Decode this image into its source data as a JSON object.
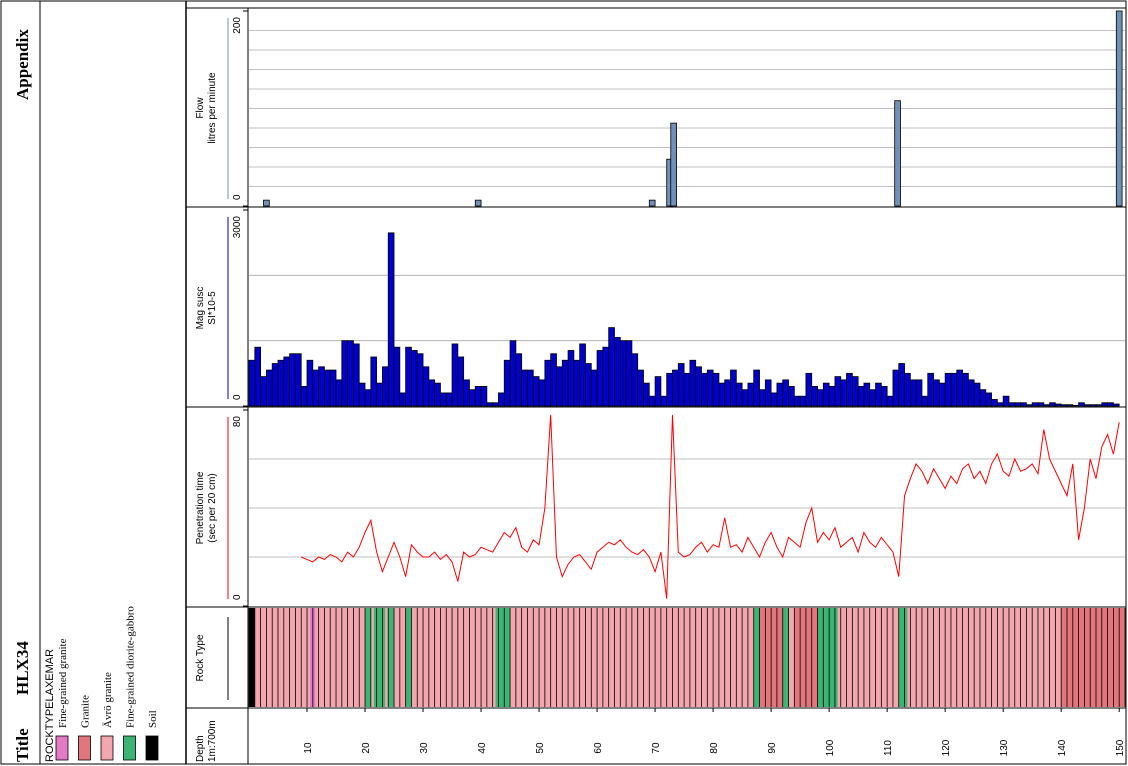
{
  "page": {
    "title_label": "Title",
    "well": "HLX34",
    "appendix": "Appendix"
  },
  "legend": {
    "title": "ROCKTYPELAXEMAR",
    "items": [
      {
        "name": "Fine-grained granite",
        "color": "#e27ac4"
      },
      {
        "name": "Granite",
        "color": "#e2767c"
      },
      {
        "name": "Ävrö granite",
        "color": "#f2a6ae"
      },
      {
        "name": "Fine-grained diorite-gabbro",
        "color": "#3cb474"
      },
      {
        "name": "Soil",
        "color": "#000000"
      }
    ]
  },
  "depth_axis": {
    "label": "Depth",
    "scale": "1m:700m",
    "xlim": [
      0,
      151
    ],
    "xticks": [
      10,
      20,
      30,
      40,
      50,
      60,
      70,
      80,
      90,
      100,
      110,
      120,
      130,
      140,
      150
    ]
  },
  "chart_data": [
    {
      "type": "bar",
      "title": "Flow",
      "axis_label": "litres per minute",
      "color": "#6f90b8",
      "axis_color": "#6f90b8",
      "x": [
        3,
        39.5,
        69.5,
        72.5,
        73.2,
        111.8,
        150
      ],
      "values": [
        6,
        6,
        6,
        48,
        85,
        108,
        200
      ],
      "ylim": [
        0,
        200
      ],
      "yticks": [
        0,
        200
      ],
      "grid_lines": [
        20,
        40,
        60,
        80,
        100,
        120,
        140,
        160,
        180
      ]
    },
    {
      "type": "bar",
      "title": "Mag susc",
      "axis_label": "SI*10-5",
      "color": "#0000cc",
      "axis_color": "#0000cc",
      "x": [
        1,
        2,
        3,
        4,
        5,
        6,
        7,
        8,
        9,
        10,
        11,
        12,
        13,
        14,
        15,
        16,
        17,
        18,
        19,
        20,
        21,
        22,
        23,
        24,
        25,
        26,
        27,
        28,
        29,
        30,
        31,
        32,
        33,
        34,
        35,
        36,
        37,
        38,
        39,
        40,
        41,
        42,
        43,
        44,
        45,
        46,
        47,
        48,
        49,
        50,
        51,
        52,
        53,
        54,
        55,
        56,
        57,
        58,
        59,
        60,
        61,
        62,
        63,
        64,
        65,
        66,
        67,
        68,
        69,
        70,
        71,
        72,
        73,
        74,
        75,
        76,
        77,
        78,
        79,
        80,
        81,
        82,
        83,
        84,
        85,
        86,
        87,
        88,
        89,
        90,
        91,
        92,
        93,
        94,
        95,
        96,
        97,
        98,
        99,
        100,
        101,
        102,
        103,
        104,
        105,
        106,
        107,
        108,
        109,
        110,
        111,
        112,
        113,
        114,
        115,
        116,
        117,
        118,
        119,
        120,
        121,
        122,
        123,
        124,
        125,
        126,
        127,
        128,
        129,
        130,
        131,
        132,
        133,
        134,
        135,
        136,
        137,
        138,
        139,
        140,
        141,
        142,
        143,
        144,
        145,
        146,
        147,
        148,
        149,
        150
      ],
      "values": [
        700,
        900,
        450,
        550,
        650,
        700,
        750,
        800,
        800,
        300,
        700,
        550,
        600,
        550,
        550,
        400,
        1000,
        1000,
        950,
        350,
        250,
        750,
        350,
        600,
        2650,
        900,
        200,
        900,
        850,
        800,
        600,
        400,
        350,
        200,
        200,
        950,
        750,
        400,
        250,
        300,
        300,
        50,
        50,
        200,
        700,
        1000,
        800,
        550,
        550,
        450,
        400,
        700,
        800,
        600,
        700,
        850,
        700,
        950,
        650,
        550,
        850,
        900,
        1200,
        1050,
        1000,
        1000,
        800,
        550,
        350,
        150,
        450,
        150,
        500,
        550,
        650,
        500,
        700,
        600,
        500,
        550,
        500,
        350,
        400,
        550,
        350,
        250,
        350,
        550,
        250,
        400,
        200,
        350,
        400,
        300,
        150,
        150,
        500,
        300,
        250,
        350,
        300,
        450,
        400,
        500,
        450,
        300,
        350,
        250,
        350,
        300,
        150,
        550,
        650,
        500,
        400,
        400,
        150,
        500,
        400,
        350,
        500,
        500,
        550,
        500,
        400,
        350,
        250,
        200,
        100,
        50,
        150,
        50,
        50,
        50,
        20,
        50,
        50,
        20,
        50,
        30,
        20,
        20,
        10,
        50,
        20,
        20,
        20,
        50,
        50,
        30
      ],
      "ylim": [
        0,
        3000
      ],
      "yticks": [
        0,
        3000
      ],
      "grid_lines": [
        1000,
        2000
      ]
    },
    {
      "type": "line",
      "title": "Penetration time",
      "axis_label": "(sec per 20 cm)",
      "color": "#ff0000",
      "axis_color": "#ff0000",
      "x": [
        9,
        10,
        11,
        12,
        13,
        14,
        15,
        16,
        17,
        18,
        19,
        20,
        21,
        22,
        23,
        24,
        25,
        26,
        27,
        28,
        29,
        30,
        31,
        32,
        33,
        34,
        35,
        36,
        37,
        38,
        39,
        40,
        41,
        42,
        43,
        44,
        45,
        46,
        47,
        48,
        49,
        50,
        51,
        52,
        53,
        54,
        55,
        56,
        57,
        58,
        59,
        60,
        61,
        62,
        63,
        64,
        65,
        66,
        67,
        68,
        69,
        70,
        71,
        72,
        73,
        74,
        75,
        76,
        77,
        78,
        79,
        80,
        81,
        82,
        83,
        84,
        85,
        86,
        87,
        88,
        89,
        90,
        91,
        92,
        93,
        94,
        95,
        96,
        97,
        98,
        99,
        100,
        101,
        102,
        103,
        104,
        105,
        106,
        107,
        108,
        109,
        110,
        111,
        112,
        113,
        114,
        115,
        116,
        117,
        118,
        119,
        120,
        121,
        122,
        123,
        124,
        125,
        126,
        127,
        128,
        129,
        130,
        131,
        132,
        133,
        134,
        135,
        136,
        137,
        138,
        139,
        140,
        141,
        142,
        143,
        144,
        145,
        146,
        147,
        148,
        149,
        150
      ],
      "values": [
        20,
        19,
        18,
        20,
        19,
        21,
        20,
        18,
        22,
        20,
        24,
        30,
        35,
        22,
        14,
        20,
        26,
        20,
        12,
        25,
        22,
        20,
        20,
        22,
        19,
        21,
        18,
        10,
        22,
        20,
        21,
        24,
        23,
        22,
        26,
        30,
        28,
        32,
        24,
        22,
        27,
        25,
        40,
        78,
        20,
        12,
        17,
        20,
        21,
        18,
        15,
        22,
        24,
        26,
        25,
        27,
        24,
        22,
        21,
        23,
        20,
        14,
        22,
        3,
        78,
        22,
        20,
        21,
        24,
        26,
        22,
        25,
        24,
        36,
        24,
        25,
        22,
        28,
        24,
        20,
        26,
        30,
        24,
        20,
        28,
        26,
        24,
        34,
        40,
        26,
        30,
        27,
        32,
        24,
        26,
        28,
        22,
        30,
        26,
        24,
        28,
        25,
        22,
        12,
        45,
        52,
        58,
        55,
        50,
        56,
        52,
        48,
        53,
        50,
        56,
        58,
        52,
        55,
        50,
        58,
        62,
        55,
        53,
        60,
        55,
        56,
        58,
        54,
        72,
        60,
        55,
        50,
        45,
        58,
        27,
        40,
        60,
        52,
        65,
        70,
        62,
        75
      ],
      "ylim": [
        0,
        80
      ],
      "yticks": [
        0,
        80
      ],
      "grid_lines": [
        20,
        40,
        60
      ]
    },
    {
      "type": "intervals",
      "title": "Rock Type",
      "axis_color": "#000000",
      "from": [
        0,
        1,
        10.5,
        11.5,
        20,
        21,
        21.5,
        23.5,
        24,
        25,
        27,
        28,
        42.5,
        45,
        87,
        88,
        92,
        93,
        94,
        98,
        101.5,
        112,
        113.5,
        140
      ],
      "to": [
        1,
        10.5,
        11.5,
        20,
        21,
        21.5,
        23.5,
        24,
        25,
        27,
        28,
        42.5,
        45,
        87,
        88,
        92,
        93,
        94,
        98,
        101.5,
        112,
        113.5,
        140,
        151
      ],
      "rock": [
        4,
        2,
        0,
        2,
        3,
        2,
        3,
        2,
        3,
        2,
        3,
        2,
        3,
        2,
        3,
        1,
        3,
        2,
        1,
        3,
        2,
        3,
        2,
        1
      ]
    }
  ]
}
